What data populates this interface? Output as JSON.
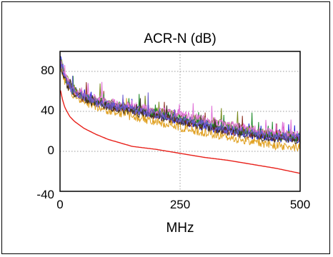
{
  "chart_data": {
    "type": "line",
    "title": "ACR-N (dB)",
    "xlabel": "MHz",
    "ylabel": "",
    "xlim": [
      0,
      500
    ],
    "ylim": [
      -40,
      100
    ],
    "xticks": [
      "0",
      "250",
      "500"
    ],
    "yticks": [
      "80",
      "40",
      "0",
      "-40"
    ],
    "grid": true,
    "legend": "none",
    "limit_line": {
      "color": "#e8201a",
      "x": [
        1,
        5,
        10,
        20,
        30,
        50,
        75,
        100,
        150,
        200,
        250,
        300,
        350,
        400,
        450,
        500
      ],
      "y": [
        61,
        52,
        44,
        35,
        30,
        23,
        17,
        12,
        5,
        2,
        -2,
        -6,
        -9,
        -13,
        -17,
        -22
      ]
    },
    "series": [
      {
        "color": "#1a1ad8",
        "x": [
          1,
          10,
          25,
          50,
          75,
          100,
          150,
          200,
          250,
          300,
          350,
          400,
          450,
          500
        ],
        "y": [
          92,
          75,
          62,
          55,
          50,
          47,
          42,
          37,
          31,
          25,
          20,
          16,
          13,
          12
        ]
      },
      {
        "color": "#7a8a1e",
        "x": [
          1,
          10,
          25,
          50,
          75,
          100,
          150,
          200,
          250,
          300,
          350,
          400,
          450,
          500
        ],
        "y": [
          95,
          76,
          64,
          56,
          51,
          48,
          44,
          40,
          36,
          31,
          26,
          21,
          17,
          15
        ]
      },
      {
        "color": "#8a2a1a",
        "x": [
          1,
          10,
          25,
          50,
          75,
          100,
          150,
          200,
          250,
          300,
          350,
          400,
          450,
          500
        ],
        "y": [
          88,
          72,
          60,
          53,
          49,
          46,
          41,
          36,
          31,
          26,
          21,
          17,
          14,
          13
        ]
      },
      {
        "color": "#1e8a2a",
        "x": [
          1,
          10,
          25,
          50,
          75,
          100,
          150,
          200,
          250,
          300,
          350,
          400,
          450,
          500
        ],
        "y": [
          90,
          74,
          61,
          54,
          50,
          47,
          43,
          38,
          33,
          28,
          23,
          19,
          15,
          14
        ]
      },
      {
        "color": "#e0a020",
        "x": [
          1,
          10,
          25,
          50,
          75,
          100,
          150,
          200,
          250,
          300,
          350,
          400,
          450,
          500
        ],
        "y": [
          87,
          70,
          58,
          50,
          45,
          41,
          35,
          30,
          24,
          19,
          14,
          10,
          6,
          4
        ]
      },
      {
        "color": "#e070d8",
        "x": [
          1,
          10,
          25,
          50,
          75,
          100,
          150,
          200,
          250,
          300,
          350,
          400,
          450,
          500
        ],
        "y": [
          91,
          75,
          63,
          56,
          52,
          49,
          45,
          41,
          37,
          32,
          27,
          22,
          18,
          16
        ]
      },
      {
        "color": "#403020",
        "x": [
          1,
          10,
          25,
          50,
          75,
          100,
          150,
          200,
          250,
          300,
          350,
          400,
          450,
          500
        ],
        "y": [
          86,
          71,
          59,
          52,
          48,
          45,
          40,
          35,
          30,
          25,
          20,
          16,
          13,
          12
        ]
      },
      {
        "color": "#6a5acd",
        "x": [
          1,
          10,
          25,
          50,
          75,
          100,
          150,
          200,
          250,
          300,
          350,
          400,
          450,
          500
        ],
        "y": [
          89,
          73,
          61,
          54,
          49,
          46,
          42,
          37,
          32,
          27,
          22,
          18,
          15,
          14
        ]
      }
    ]
  }
}
